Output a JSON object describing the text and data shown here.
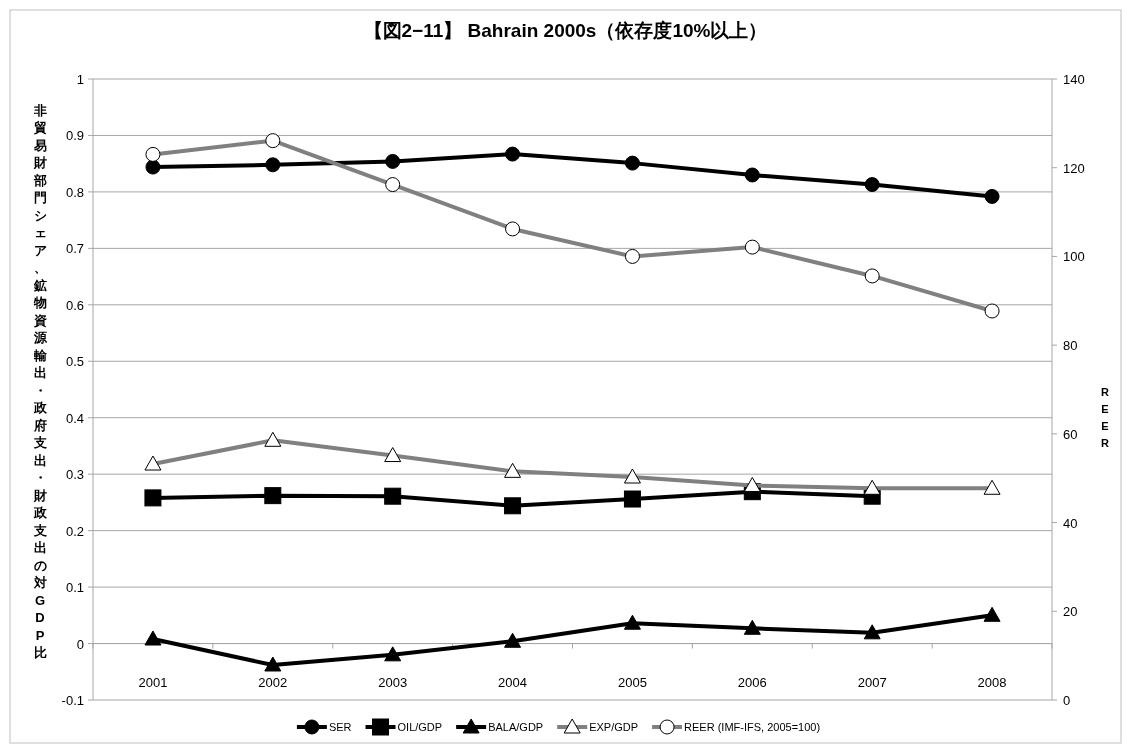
{
  "chart_data": {
    "type": "line",
    "title": "【図2−11】 Bahrain 2000s（依存度10%以上）",
    "ylabel": "非貿易財部門シェア、鉱物資源輸出・政府支出・財政支出の対GDP比",
    "y2label": "REER",
    "categories": [
      "2001",
      "2002",
      "2003",
      "2004",
      "2005",
      "2006",
      "2007",
      "2008"
    ],
    "series": [
      {
        "name": "SER",
        "color": "#000000",
        "marker": "circle",
        "values": [
          0.844,
          0.848,
          0.854,
          0.867,
          0.851,
          0.83,
          0.813,
          0.792
        ]
      },
      {
        "name": "OIL/GDP",
        "color": "#000000",
        "marker": "square",
        "values": [
          0.258,
          0.262,
          0.261,
          0.244,
          0.256,
          0.269,
          0.261,
          null
        ]
      },
      {
        "name": "BALA/GDP",
        "color": "#000000",
        "marker": "triangle",
        "values": [
          0.008,
          -0.038,
          -0.02,
          0.004,
          0.036,
          0.027,
          0.019,
          0.05
        ]
      },
      {
        "name": "EXP/GDP",
        "color": "#808080",
        "marker": "triangle",
        "values": [
          0.318,
          0.36,
          0.333,
          0.305,
          0.295,
          0.28,
          0.275,
          0.275
        ]
      },
      {
        "name": "REER (IMF-IFS, 2005=100)",
        "color": "#808080",
        "marker": "circle",
        "axis": "y2",
        "values": [
          123.0,
          126.1,
          116.2,
          106.2,
          100.0,
          102.1,
          95.6,
          87.7
        ]
      }
    ],
    "ylim": [
      -0.1,
      1
    ],
    "yticks": [
      -0.1,
      0,
      0.1,
      0.2,
      0.3,
      0.4,
      0.5,
      0.6,
      0.7,
      0.8,
      0.9,
      1
    ],
    "y2lim": [
      0,
      140
    ],
    "y2ticks": [
      0,
      20,
      40,
      60,
      80,
      100,
      120,
      140
    ],
    "grid": "y",
    "legend": "bottom",
    "line_style": "solid"
  }
}
